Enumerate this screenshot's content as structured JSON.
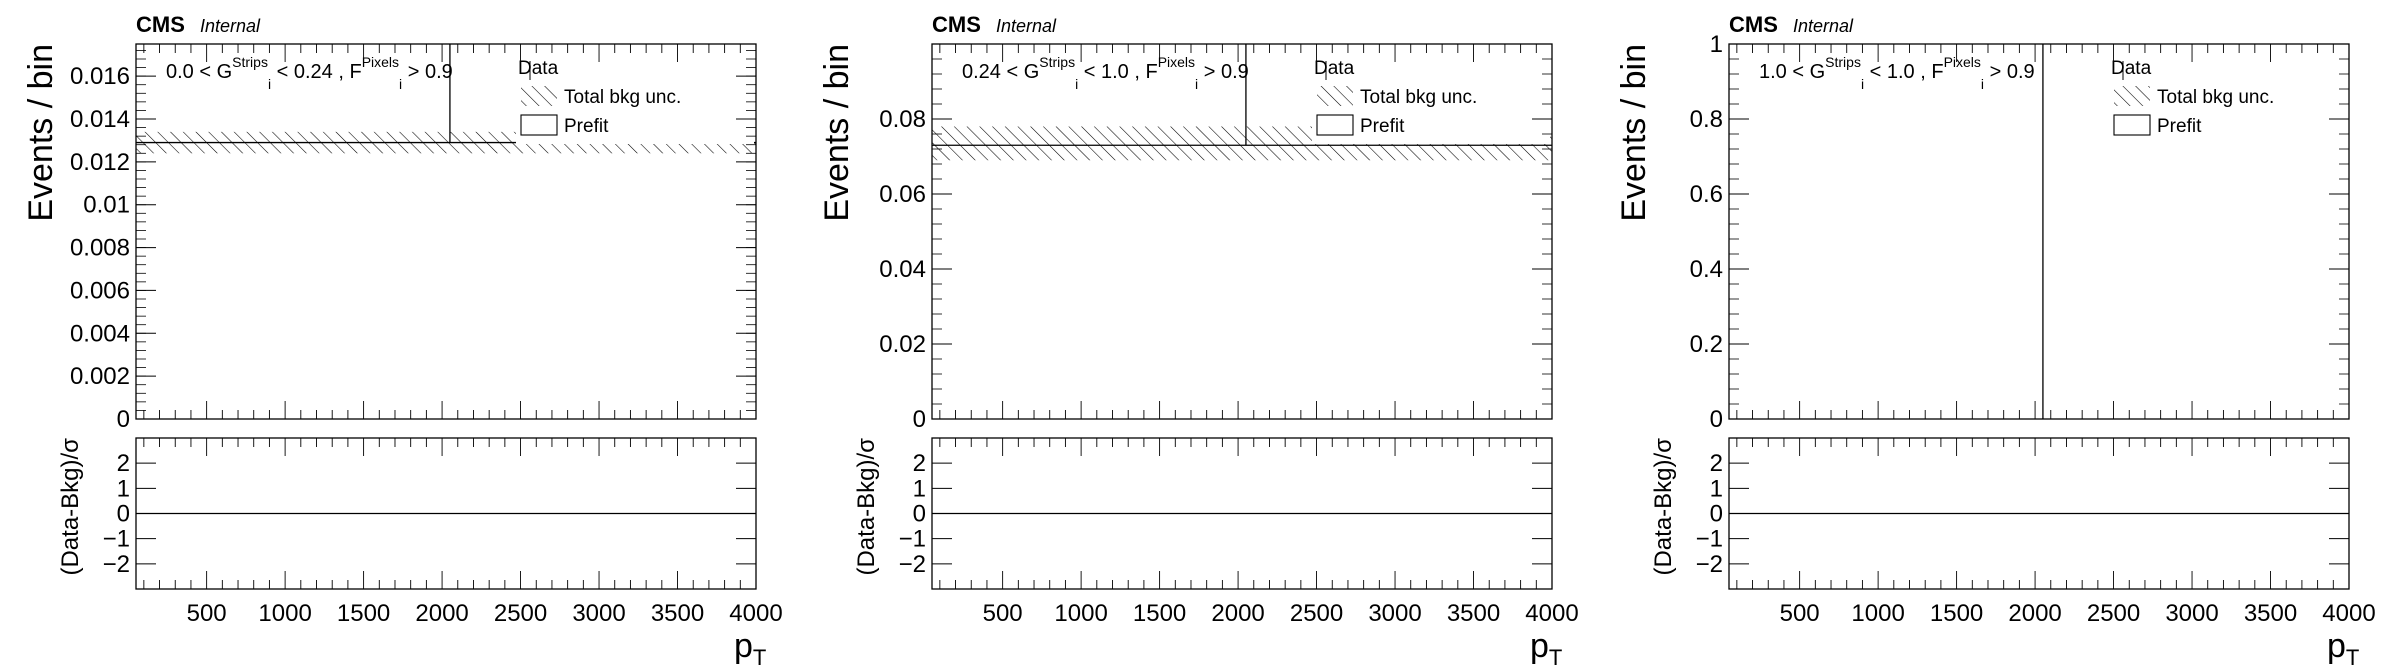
{
  "chart_data": [
    {
      "type": "histogram",
      "experiment": "CMS",
      "experiment_status": "Internal",
      "region": {
        "g_lo": "0.0",
        "g_hi": "0.24",
        "f_cut": "0.9"
      },
      "ylabel": "Events / bin",
      "ratio_ylabel": "(Data-Bkg)/σ",
      "xlabel": "p",
      "xlabel_sub": "T",
      "xlim": [
        50,
        4000
      ],
      "ylim": [
        0,
        0.0175
      ],
      "yticks": [
        0,
        0.002,
        0.004,
        0.006,
        0.008,
        0.01,
        0.012,
        0.014,
        0.016
      ],
      "ytick_labels": [
        "0",
        "0.002",
        "0.004",
        "0.006",
        "0.008",
        "0.01",
        "0.012",
        "0.014",
        "0.016"
      ],
      "ratio_ylim": [
        -3,
        3
      ],
      "ratio_yticks": [
        2,
        1,
        0,
        -1,
        -2
      ],
      "ratio_ytick_labels": [
        "2",
        "1",
        "0",
        "−1",
        "−2"
      ],
      "xticks": [
        500,
        1000,
        1500,
        2000,
        2500,
        3000,
        3500,
        4000
      ],
      "xtick_labels": [
        "500",
        "1000",
        "1500",
        "2000",
        "2500",
        "3000",
        "3500",
        "4000"
      ],
      "prefit": {
        "x_range": [
          50,
          4000
        ],
        "value": 0.0129
      },
      "total_bkg_unc": {
        "x_range": [
          50,
          4000
        ],
        "low": 0.0124,
        "high": 0.0134
      },
      "data": [
        {
          "x": 2050,
          "y": 0.0129,
          "y_top": 0.0175
        }
      ],
      "pull": {
        "value": 0
      },
      "legend": [
        "Data",
        "Total bkg unc.",
        "Prefit"
      ]
    },
    {
      "type": "histogram",
      "experiment": "CMS",
      "experiment_status": "Internal",
      "region": {
        "g_lo": "0.24",
        "g_hi": "1.0",
        "f_cut": "0.9"
      },
      "ylabel": "Events / bin",
      "ratio_ylabel": "(Data-Bkg)/σ",
      "xlabel": "p",
      "xlabel_sub": "T",
      "xlim": [
        50,
        4000
      ],
      "ylim": [
        0,
        0.1
      ],
      "yticks": [
        0,
        0.02,
        0.04,
        0.06,
        0.08
      ],
      "ytick_labels": [
        "0",
        "0.02",
        "0.04",
        "0.06",
        "0.08"
      ],
      "ratio_ylim": [
        -3,
        3
      ],
      "ratio_yticks": [
        2,
        1,
        0,
        -1,
        -2
      ],
      "ratio_ytick_labels": [
        "2",
        "1",
        "0",
        "−1",
        "−2"
      ],
      "xticks": [
        500,
        1000,
        1500,
        2000,
        2500,
        3000,
        3500,
        4000
      ],
      "xtick_labels": [
        "500",
        "1000",
        "1500",
        "2000",
        "2500",
        "3000",
        "3500",
        "4000"
      ],
      "prefit": {
        "x_range": [
          50,
          4000
        ],
        "value": 0.073
      },
      "total_bkg_unc": {
        "x_range": [
          50,
          4000
        ],
        "low": 0.069,
        "high": 0.078
      },
      "data": [
        {
          "x": 2050,
          "y": 0.073,
          "y_top": 0.1
        }
      ],
      "pull": {
        "value": 0
      },
      "legend": [
        "Data",
        "Total bkg unc.",
        "Prefit"
      ]
    },
    {
      "type": "histogram",
      "experiment": "CMS",
      "experiment_status": "Internal",
      "region": {
        "g_lo": "1.0",
        "g_hi": "1.0",
        "f_cut": "0.9"
      },
      "ylabel": "Events / bin",
      "ratio_ylabel": "(Data-Bkg)/σ",
      "xlabel": "p",
      "xlabel_sub": "T",
      "xlim": [
        50,
        4000
      ],
      "ylim": [
        0,
        1
      ],
      "yticks": [
        0,
        0.2,
        0.4,
        0.6,
        0.8,
        1
      ],
      "ytick_labels": [
        "0",
        "0.2",
        "0.4",
        "0.6",
        "0.8",
        "1"
      ],
      "ratio_ylim": [
        -3,
        3
      ],
      "ratio_yticks": [
        2,
        1,
        0,
        -1,
        -2
      ],
      "ratio_ytick_labels": [
        "2",
        "1",
        "0",
        "−1",
        "−2"
      ],
      "xticks": [
        500,
        1000,
        1500,
        2000,
        2500,
        3000,
        3500,
        4000
      ],
      "xtick_labels": [
        "500",
        "1000",
        "1500",
        "2000",
        "2500",
        "3000",
        "3500",
        "4000"
      ],
      "prefit": {
        "x_range": [
          50,
          4000
        ],
        "value": 0
      },
      "total_bkg_unc": {
        "x_range": [
          50,
          4000
        ],
        "low": 0,
        "high": 0
      },
      "data": [
        {
          "x": 2050,
          "y": 0,
          "y_top": 1
        }
      ],
      "pull": {
        "value": 0
      },
      "legend": [
        "Data",
        "Total bkg unc.",
        "Prefit"
      ]
    }
  ]
}
